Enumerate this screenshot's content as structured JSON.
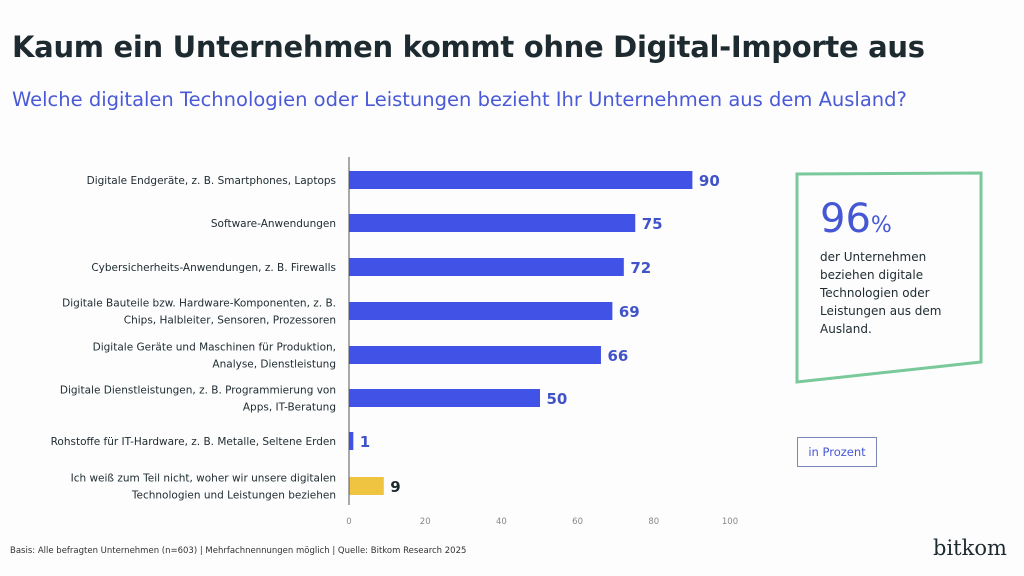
{
  "title": "Kaum ein Unternehmen kommt ohne Digital-Importe aus",
  "subtitle": "Welche digitalen Technologien oder Leistungen bezieht Ihr Unternehmen aus dem Ausland?",
  "chart_data": {
    "type": "bar",
    "orientation": "horizontal",
    "categories": [
      [
        "Digitale Endgeräte, z. B. Smartphones, Laptops"
      ],
      [
        "Software-Anwendungen"
      ],
      [
        "Cybersicherheits-Anwendungen, z. B. Firewalls"
      ],
      [
        "Digitale Bauteile bzw. Hardware-Komponenten, z. B.",
        "Chips, Halbleiter, Sensoren, Prozessoren"
      ],
      [
        "Digitale Geräte und Maschinen für Produktion,",
        "Analyse, Dienstleistung"
      ],
      [
        "Digitale Dienstleistungen, z. B. Programmierung von",
        "Apps, IT-Beratung"
      ],
      [
        "Rohstoffe für IT-Hardware, z. B. Metalle, Seltene Erden"
      ],
      [
        "Ich weiß zum Teil nicht, woher wir unsere digitalen",
        "Technologien und Leistungen beziehen"
      ]
    ],
    "values": [
      90,
      75,
      72,
      69,
      66,
      50,
      1,
      9
    ],
    "bar_colors": [
      "#4153e6",
      "#4153e6",
      "#4153e6",
      "#4153e6",
      "#4153e6",
      "#4153e6",
      "#4153e6",
      "#eec441"
    ],
    "label_colors": [
      "#4153c8",
      "#4153c8",
      "#4153c8",
      "#4153c8",
      "#4153c8",
      "#4153c8",
      "#4153c8",
      "#1d2a30"
    ],
    "xlim": [
      0,
      100
    ],
    "xticks": [
      "0",
      "20",
      "40",
      "60",
      "80",
      "100"
    ],
    "grid": false,
    "unit_label": "in Prozent"
  },
  "kpi": {
    "value": "96",
    "unit": "%",
    "text": "der Unternehmen beziehen digitale Technologien oder Leistungen aus dem Ausland.",
    "border_color": "#79c99a"
  },
  "footer": "Basis: Alle befragten Unternehmen (n=603) | Mehrfachnennungen möglich | Quelle: Bitkom Research 2025",
  "logo": "bitkom"
}
